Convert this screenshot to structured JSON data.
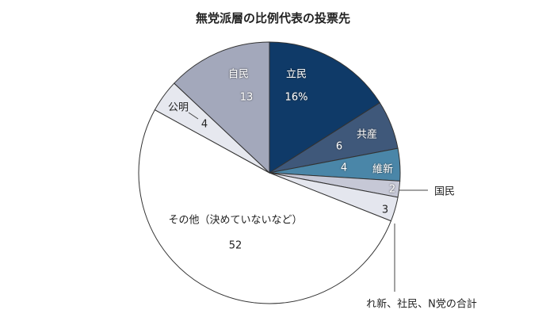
{
  "chart_data": {
    "type": "pie",
    "title": "無党派層の比例代表の投票先",
    "unit": "%",
    "start": "12 o'clock, clockwise",
    "slices": [
      {
        "name": "立民",
        "value": 16,
        "value_label": "16%",
        "color": "#0f3a68"
      },
      {
        "name": "共産",
        "value": 6,
        "value_label": "6",
        "color": "#3f587a"
      },
      {
        "name": "維新",
        "value": 4,
        "value_label": "4",
        "color": "#4a86a8"
      },
      {
        "name": "国民",
        "value": 2,
        "value_label": "2",
        "color": "#c6c8d6"
      },
      {
        "name": "れ新、社民、N党の合計",
        "value": 3,
        "value_label": "3",
        "color": "#e4e6ee"
      },
      {
        "name": "その他（決めていないなど）",
        "value": 52,
        "value_label": "52",
        "color": "#ffffff"
      },
      {
        "name": "公明",
        "value": 4,
        "value_label": "4",
        "color": "#e6e8ef"
      },
      {
        "name": "自民",
        "value": 13,
        "value_label": "13",
        "color": "#a3a8bb"
      }
    ]
  }
}
